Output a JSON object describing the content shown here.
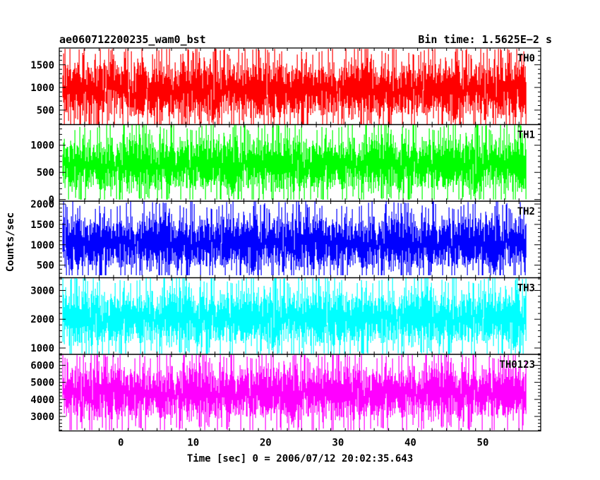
{
  "chart_data": {
    "type": "line",
    "title": "ae060712200235_wam0_bst",
    "subtitle": "Bin time: 1.5625E−2 s",
    "xlabel": "Time [sec] 0 = 2006/07/12 20:02:35.643",
    "ylabel": "Counts/sec",
    "xlim": [
      -8.5,
      58.0
    ],
    "x_ticks": [
      0,
      10,
      20,
      30,
      40,
      50
    ],
    "x_tick_labels": [
      "0",
      "10",
      "20",
      "30",
      "40",
      "50"
    ],
    "x_data_range": [
      -8.0,
      56.0
    ],
    "grid": false,
    "legend": "none",
    "series": [
      {
        "name": "TH0",
        "color": "#ff0000",
        "ylim": [
          180,
          1870
        ],
        "y_ticks": [
          500,
          1000,
          1500
        ],
        "y_tick_labels": [
          "500",
          "1000",
          "1500"
        ],
        "mean": 950,
        "band": [
          150,
          1850
        ]
      },
      {
        "name": "TH1",
        "color": "#00ff00",
        "ylim": [
          -30,
          1380
        ],
        "y_ticks": [
          0,
          500,
          1000
        ],
        "y_tick_labels": [
          "0",
          "500",
          "1000"
        ],
        "mean": 650,
        "band": [
          0,
          1380
        ]
      },
      {
        "name": "TH2",
        "color": "#0000ff",
        "ylim": [
          190,
          2070
        ],
        "y_ticks": [
          500,
          1000,
          1500,
          2000
        ],
        "y_tick_labels": [
          "500",
          "1000",
          "1500",
          "2000"
        ],
        "mean": 1050,
        "band": [
          250,
          2070
        ]
      },
      {
        "name": "TH3",
        "color": "#00ffff",
        "ylim": [
          780,
          3440
        ],
        "y_ticks": [
          1000,
          2000,
          3000
        ],
        "y_tick_labels": [
          "1000",
          "2000",
          "3000"
        ],
        "mean": 2050,
        "band": [
          800,
          3440
        ]
      },
      {
        "name": "TH0123",
        "color": "#ff00ff",
        "ylim": [
          2150,
          6640
        ],
        "y_ticks": [
          3000,
          4000,
          5000,
          6000
        ],
        "y_tick_labels": [
          "3000",
          "4000",
          "5000",
          "6000"
        ],
        "mean": 4400,
        "band": [
          2200,
          6600
        ]
      }
    ]
  }
}
